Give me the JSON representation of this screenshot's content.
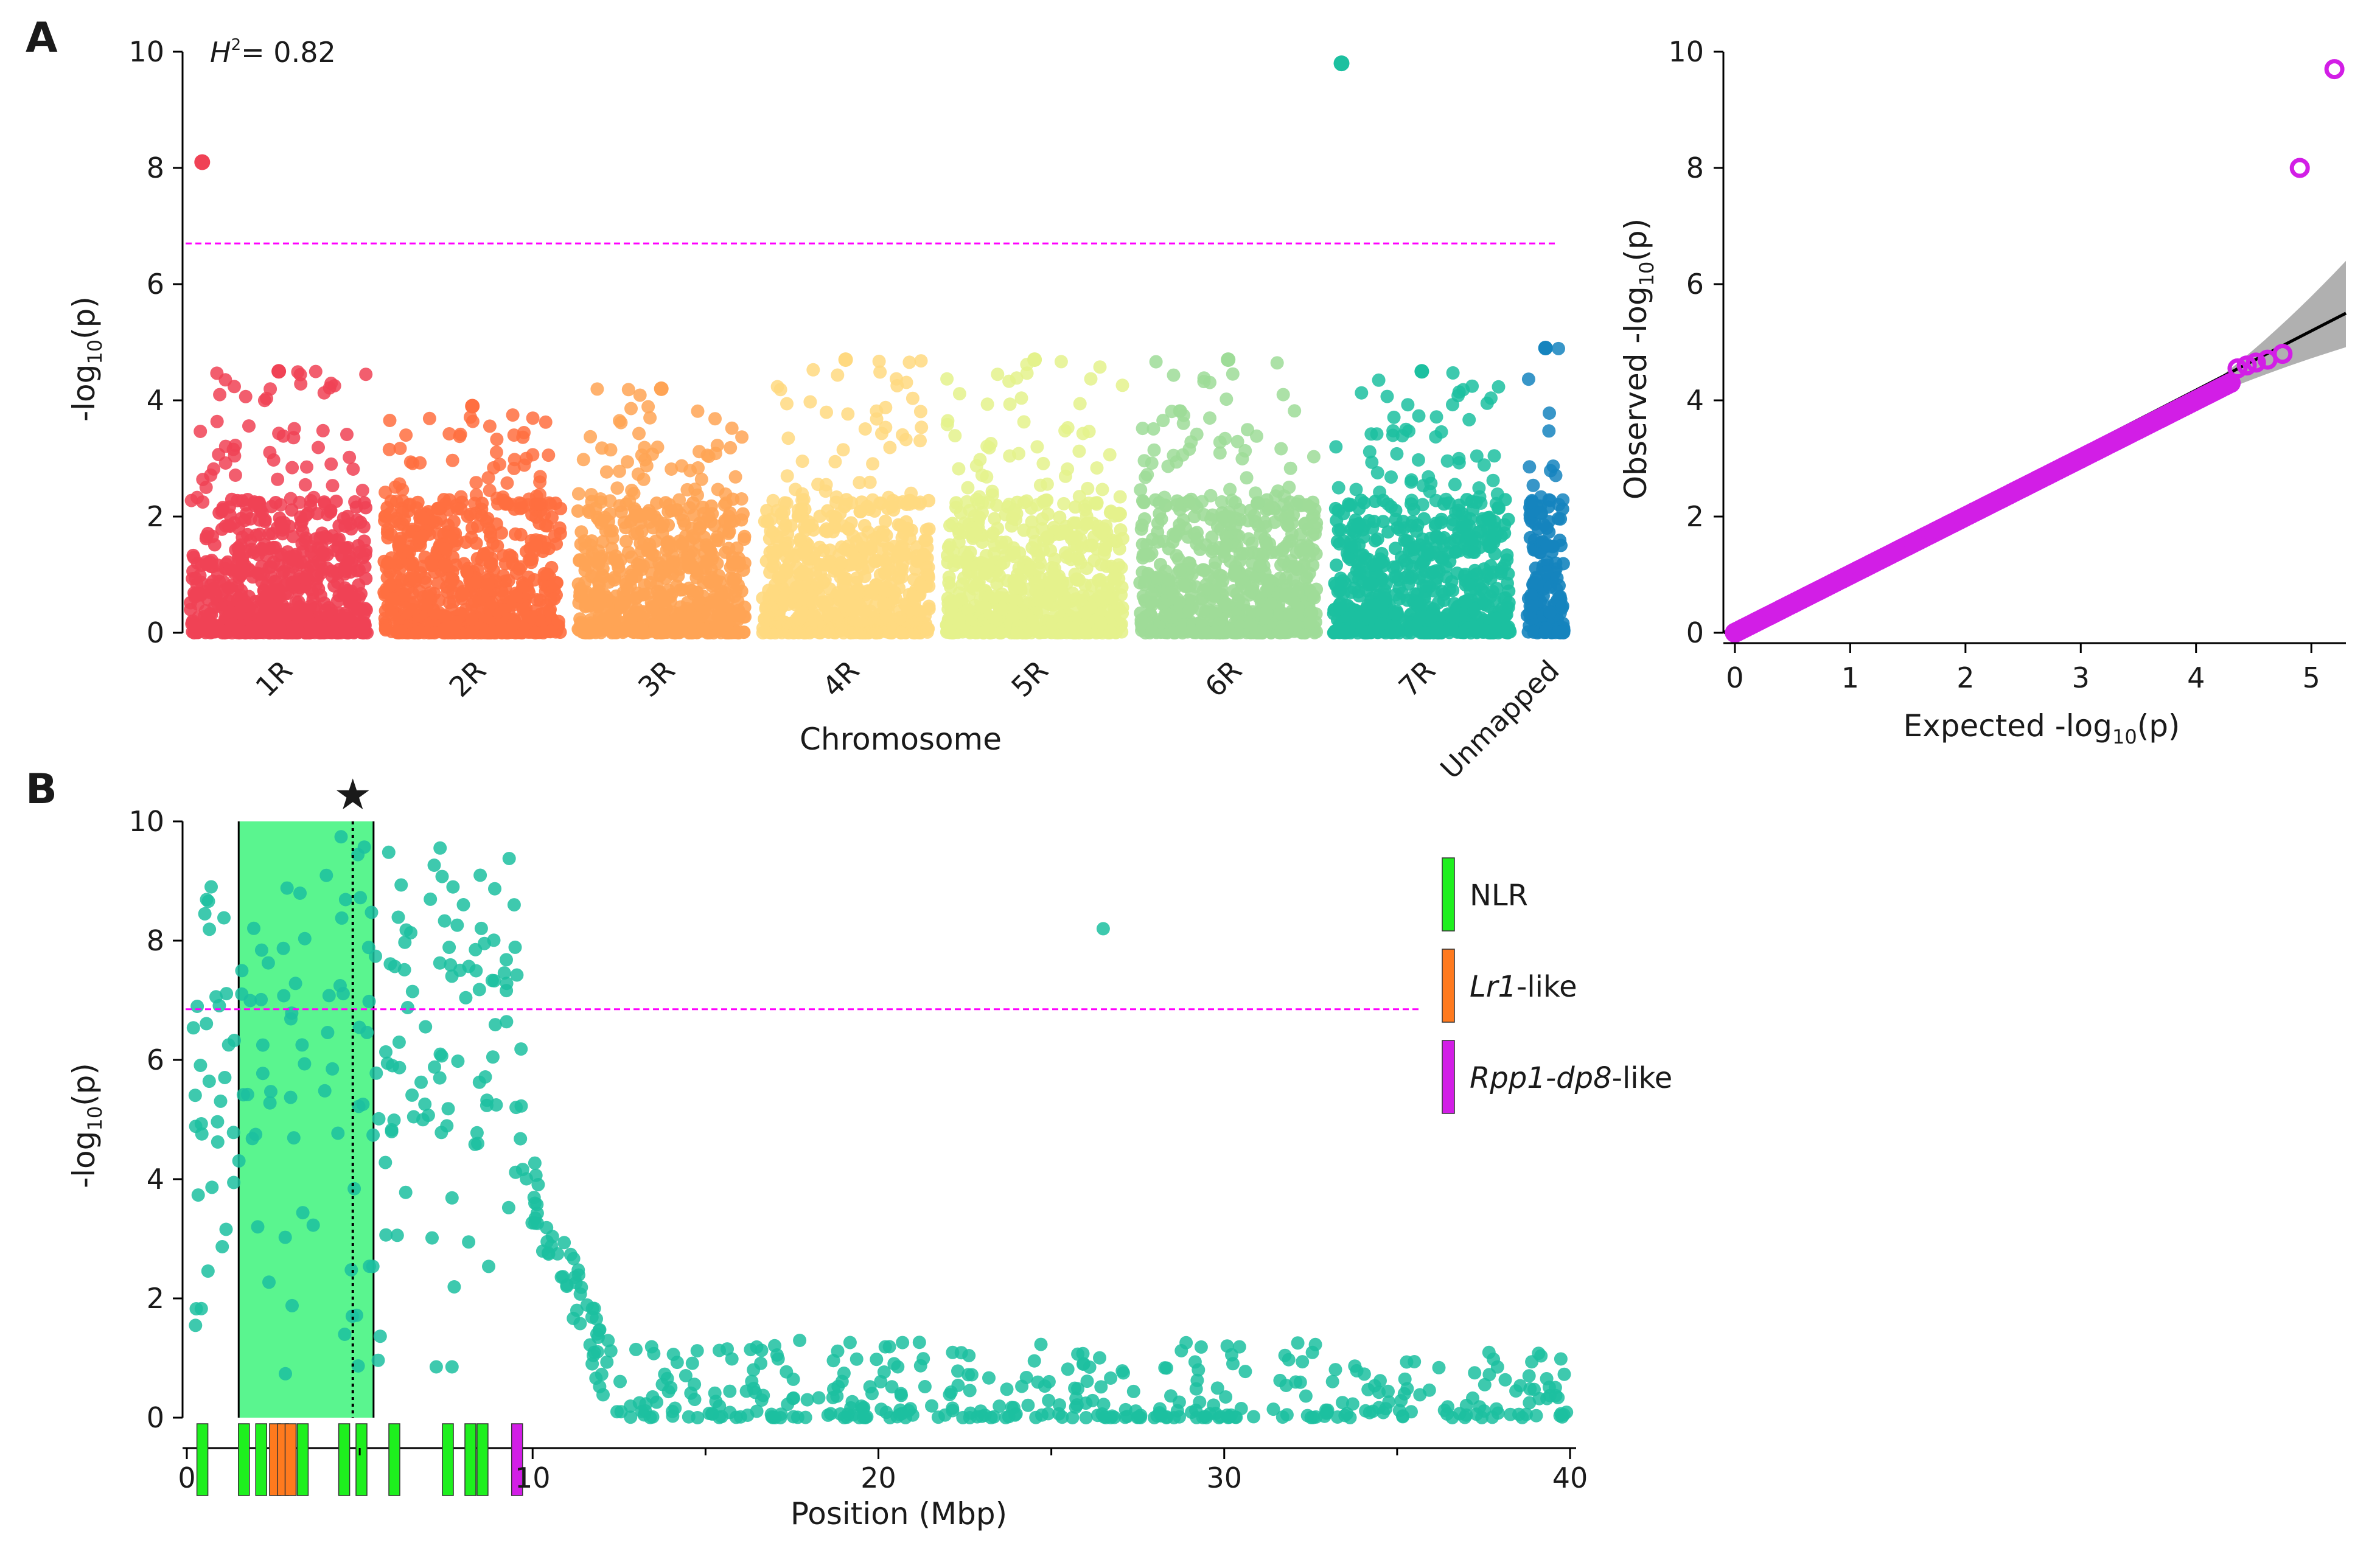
{
  "figure": {
    "panel_a_label": "A",
    "panel_b_label": "B"
  },
  "chart_data": [
    {
      "id": "manhattan",
      "type": "scatter",
      "title": "",
      "annotation_prefix": "H",
      "annotation_superscript": "2",
      "annotation_value": "= 0.82",
      "xlabel": "Chromosome",
      "ylabel_prefix": "-log",
      "ylabel_sub": "10",
      "ylabel_suffix": "(p)",
      "ylim": [
        0,
        10
      ],
      "yticks": [
        0,
        2,
        4,
        6,
        8,
        10
      ],
      "threshold": 6.7,
      "threshold_color": "#ff00ff",
      "categories": [
        "1R",
        "2R",
        "3R",
        "4R",
        "5R",
        "6R",
        "7R",
        "Unmapped"
      ],
      "category_colors": [
        "#f04255",
        "#ff6f40",
        "#ffa455",
        "#ffd980",
        "#e4f28c",
        "#9edc98",
        "#1cc0a0",
        "#1584be"
      ],
      "category_size": [
        1,
        1,
        0.95,
        0.95,
        1,
        1,
        1,
        0.25
      ],
      "category_max": [
        4.5,
        3.9,
        4.2,
        4.7,
        4.7,
        4.7,
        4.5,
        4.9
      ],
      "significant_points": [
        {
          "chromosome": "1R",
          "position": 0.05,
          "value": 8.1
        },
        {
          "chromosome": "7R",
          "position": 0.03,
          "value": 9.8
        }
      ]
    },
    {
      "id": "qq",
      "type": "scatter",
      "xlabel": "Expected -log10(p)",
      "xlabel_prefix": "Expected -log",
      "xlabel_sub": "10",
      "xlabel_suffix": "(p)",
      "ylabel_prefix": "Observed -log",
      "ylabel_sub": "10",
      "ylabel_suffix": "(p)",
      "xlim": [
        -0.1,
        5.3
      ],
      "ylim": [
        0,
        10
      ],
      "xticks": [
        0,
        1,
        2,
        3,
        4,
        5
      ],
      "yticks": [
        0,
        2,
        4,
        6,
        8,
        10
      ],
      "point_color": "#d21ee6",
      "band_color": "#b0b0b0",
      "line_color": "#000000",
      "top_points": [
        {
          "expected": 5.2,
          "observed": 9.7
        },
        {
          "expected": 4.9,
          "observed": 8.0
        },
        {
          "expected": 4.75,
          "observed": 4.8
        },
        {
          "expected": 4.62,
          "observed": 4.7
        },
        {
          "expected": 4.52,
          "observed": 4.65
        },
        {
          "expected": 4.44,
          "observed": 4.6
        },
        {
          "expected": 4.36,
          "observed": 4.55
        }
      ]
    },
    {
      "id": "regional",
      "type": "scatter",
      "xlabel": "Position (Mbp)",
      "ylabel_prefix": "-log",
      "ylabel_sub": "10",
      "ylabel_suffix": "(p)",
      "xlim": [
        0,
        40
      ],
      "ylim": [
        0,
        10
      ],
      "xticks": [
        0,
        10,
        20,
        30,
        40
      ],
      "yticks": [
        0,
        2,
        4,
        6,
        8,
        10
      ],
      "threshold": 6.85,
      "point_color": "#1cc0a0",
      "highlight_region": [
        1.5,
        5.4
      ],
      "highlight_color": "#5af58f",
      "peak_line": 4.8,
      "peak_marker": "★",
      "outlier": {
        "x": 26.5,
        "y": 8.2
      },
      "genes": [
        {
          "x": 0.45,
          "type": "NLR"
        },
        {
          "x": 1.65,
          "type": "NLR"
        },
        {
          "x": 2.15,
          "type": "NLR"
        },
        {
          "x": 2.55,
          "type": "Lr1-like"
        },
        {
          "x": 2.78,
          "type": "Lr1-like"
        },
        {
          "x": 3.0,
          "type": "Lr1-like"
        },
        {
          "x": 3.35,
          "type": "NLR"
        },
        {
          "x": 4.55,
          "type": "NLR"
        },
        {
          "x": 5.05,
          "type": "NLR"
        },
        {
          "x": 6.0,
          "type": "NLR"
        },
        {
          "x": 7.55,
          "type": "NLR"
        },
        {
          "x": 8.2,
          "type": "NLR"
        },
        {
          "x": 8.55,
          "type": "NLR"
        },
        {
          "x": 9.55,
          "type": "Rpp1-dp8-like"
        }
      ],
      "legend": [
        {
          "name": "NLR",
          "text": "NLR",
          "suffix": "",
          "italic": false,
          "color": "#1ef01e"
        },
        {
          "name": "Lr1-like",
          "text": "Lr1",
          "suffix": "-like",
          "italic": true,
          "color": "#ff7a1e"
        },
        {
          "name": "Rpp1-dp8-like",
          "text": "Rpp1-dp8",
          "suffix": "-like",
          "italic": true,
          "color": "#d21ee6"
        }
      ]
    }
  ]
}
